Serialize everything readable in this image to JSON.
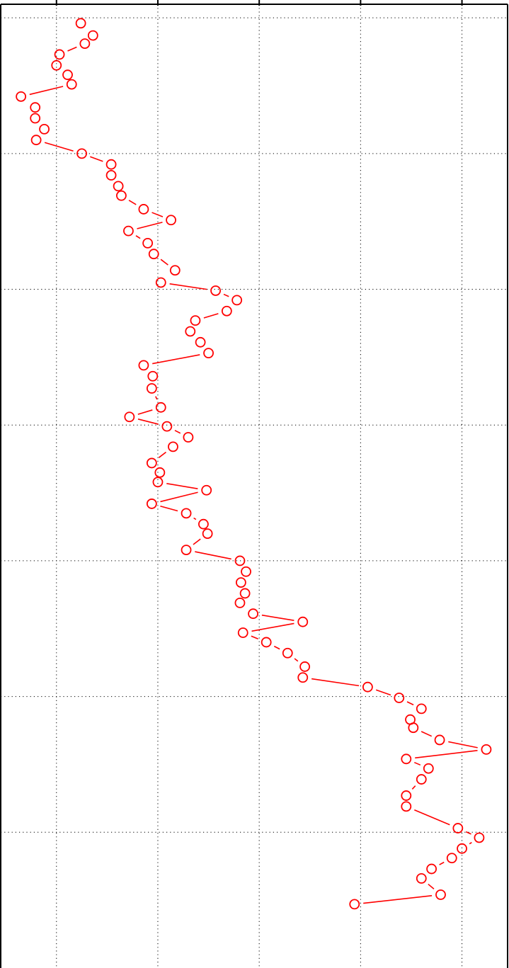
{
  "chart_data": {
    "type": "line",
    "title": "",
    "xlabel": "",
    "ylabel": "",
    "orientation": "vertical-profile",
    "grid": true,
    "grid_style": "dotted",
    "xlim": [
      -0.55,
      4.45
    ],
    "ylim": [
      0,
      7.1
    ],
    "x_ticks": [
      0,
      1,
      2,
      3,
      4
    ],
    "y_ticks": [
      1,
      2,
      3,
      4,
      5,
      6,
      7
    ],
    "marker": "open-circle",
    "line_style": "dashed",
    "series": [
      {
        "color": "#ff0000",
        "points": [
          [
            0.24,
            6.96
          ],
          [
            0.36,
            6.87
          ],
          [
            0.28,
            6.81
          ],
          [
            0.03,
            6.73
          ],
          [
            0.0,
            6.65
          ],
          [
            0.11,
            6.58
          ],
          [
            0.15,
            6.51
          ],
          [
            -0.35,
            6.42
          ],
          [
            -0.21,
            6.34
          ],
          [
            -0.21,
            6.26
          ],
          [
            -0.12,
            6.18
          ],
          [
            -0.2,
            6.1
          ],
          [
            0.25,
            6.0
          ],
          [
            0.54,
            5.92
          ],
          [
            0.54,
            5.84
          ],
          [
            0.61,
            5.76
          ],
          [
            0.64,
            5.69
          ],
          [
            0.86,
            5.59
          ],
          [
            1.13,
            5.51
          ],
          [
            0.71,
            5.43
          ],
          [
            0.9,
            5.34
          ],
          [
            0.96,
            5.26
          ],
          [
            1.17,
            5.14
          ],
          [
            1.03,
            5.05
          ],
          [
            1.57,
            4.99
          ],
          [
            1.78,
            4.92
          ],
          [
            1.68,
            4.84
          ],
          [
            1.37,
            4.77
          ],
          [
            1.32,
            4.69
          ],
          [
            1.42,
            4.61
          ],
          [
            1.5,
            4.53
          ],
          [
            0.86,
            4.44
          ],
          [
            0.95,
            4.36
          ],
          [
            0.94,
            4.27
          ],
          [
            1.03,
            4.13
          ],
          [
            0.72,
            4.06
          ],
          [
            1.09,
            3.99
          ],
          [
            1.3,
            3.91
          ],
          [
            1.15,
            3.84
          ],
          [
            0.94,
            3.72
          ],
          [
            1.02,
            3.65
          ],
          [
            1.0,
            3.58
          ],
          [
            1.48,
            3.52
          ],
          [
            0.94,
            3.42
          ],
          [
            1.28,
            3.35
          ],
          [
            1.45,
            3.27
          ],
          [
            1.49,
            3.2
          ],
          [
            1.28,
            3.08
          ],
          [
            1.81,
            3.0
          ],
          [
            1.87,
            2.92
          ],
          [
            1.82,
            2.84
          ],
          [
            1.86,
            2.76
          ],
          [
            1.81,
            2.69
          ],
          [
            1.94,
            2.61
          ],
          [
            2.43,
            2.55
          ],
          [
            1.84,
            2.47
          ],
          [
            2.07,
            2.4
          ],
          [
            2.28,
            2.32
          ],
          [
            2.45,
            2.22
          ],
          [
            2.43,
            2.14
          ],
          [
            3.07,
            2.07
          ],
          [
            3.38,
            1.99
          ],
          [
            3.6,
            1.91
          ],
          [
            3.49,
            1.83
          ],
          [
            3.52,
            1.77
          ],
          [
            3.78,
            1.68
          ],
          [
            4.24,
            1.61
          ],
          [
            3.45,
            1.54
          ],
          [
            3.67,
            1.47
          ],
          [
            3.6,
            1.39
          ],
          [
            3.45,
            1.27
          ],
          [
            3.45,
            1.19
          ],
          [
            3.96,
            1.03
          ],
          [
            4.17,
            0.96
          ],
          [
            4.0,
            0.88
          ],
          [
            3.9,
            0.81
          ],
          [
            3.7,
            0.73
          ],
          [
            3.6,
            0.66
          ],
          [
            3.79,
            0.54
          ],
          [
            2.94,
            0.47
          ]
        ]
      }
    ]
  }
}
